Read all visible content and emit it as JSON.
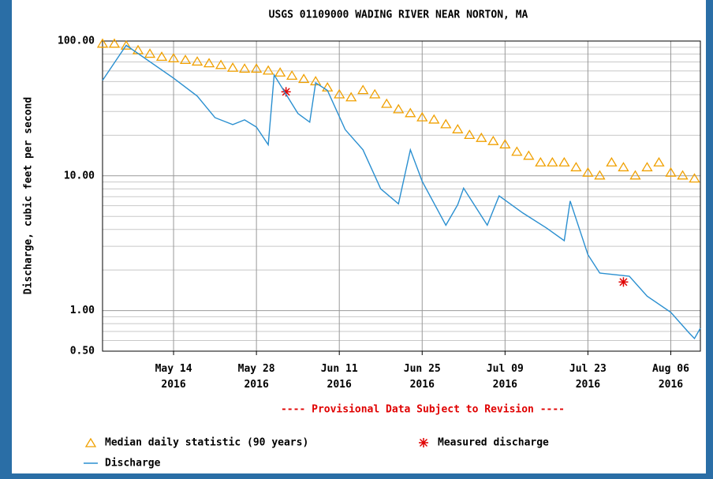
{
  "chart_data": {
    "type": "line",
    "title": "USGS 01109000 WADING RIVER NEAR NORTON, MA",
    "y_label": "Discharge, cubic feet per second",
    "note": "---- Provisional Data Subject to Revision ----",
    "log_scale_y": true,
    "grid": true,
    "minor_grid": true,
    "xlim": [
      "2016-05-02",
      "2016-08-11"
    ],
    "xticks": [
      {
        "value": "2016-05-14",
        "label": "May 14\n2016"
      },
      {
        "value": "2016-05-28",
        "label": "May 28\n2016"
      },
      {
        "value": "2016-06-11",
        "label": "Jun 11\n2016"
      },
      {
        "value": "2016-06-25",
        "label": "Jun 25\n2016"
      },
      {
        "value": "2016-07-09",
        "label": "Jul 09\n2016"
      },
      {
        "value": "2016-07-23",
        "label": "Jul 23\n2016"
      },
      {
        "value": "2016-08-06",
        "label": "Aug 06\n2016"
      }
    ],
    "ylim": [
      0.5,
      100
    ],
    "yticks": [
      {
        "value": 0.5,
        "label": "0.50"
      },
      {
        "value": 1,
        "label": "1.00"
      },
      {
        "value": 10,
        "label": "10.00"
      },
      {
        "value": 100,
        "label": "100.00"
      }
    ],
    "series": [
      {
        "name": "Median daily statistic (90 years)",
        "color": "#f0a000",
        "style": "triangle",
        "x": [
          "2016-05-02",
          "2016-05-04",
          "2016-05-06",
          "2016-05-08",
          "2016-05-10",
          "2016-05-12",
          "2016-05-14",
          "2016-05-16",
          "2016-05-18",
          "2016-05-20",
          "2016-05-22",
          "2016-05-24",
          "2016-05-26",
          "2016-05-28",
          "2016-05-30",
          "2016-06-01",
          "2016-06-03",
          "2016-06-05",
          "2016-06-07",
          "2016-06-09",
          "2016-06-11",
          "2016-06-13",
          "2016-06-15",
          "2016-06-17",
          "2016-06-19",
          "2016-06-21",
          "2016-06-23",
          "2016-06-25",
          "2016-06-27",
          "2016-06-29",
          "2016-07-01",
          "2016-07-03",
          "2016-07-05",
          "2016-07-07",
          "2016-07-09",
          "2016-07-11",
          "2016-07-13",
          "2016-07-15",
          "2016-07-17",
          "2016-07-19",
          "2016-07-21",
          "2016-07-23",
          "2016-07-25",
          "2016-07-27",
          "2016-07-29",
          "2016-07-31",
          "2016-08-02",
          "2016-08-04",
          "2016-08-06",
          "2016-08-08",
          "2016-08-10"
        ],
        "values": [
          95,
          95,
          92,
          85,
          80,
          76,
          74,
          72,
          70,
          68,
          66,
          63,
          62,
          62,
          60,
          58,
          55,
          52,
          50,
          45,
          40,
          38,
          43,
          40,
          34,
          31,
          29,
          27,
          26,
          24,
          22,
          20,
          19,
          18,
          17,
          15,
          14,
          12.5,
          12.5,
          12.5,
          11.5,
          10.5,
          10,
          12.5,
          11.5,
          10,
          11.5,
          12.5,
          10.5,
          10,
          9.5
        ]
      },
      {
        "name": "Measured discharge",
        "color": "#e00000",
        "style": "asterisk",
        "x": [
          "2016-06-02",
          "2016-07-29"
        ],
        "values": [
          42,
          1.63
        ]
      },
      {
        "name": "Discharge",
        "color": "#2a8fd0",
        "style": "line",
        "x": [
          "2016-05-02",
          "2016-05-06",
          "2016-05-14",
          "2016-05-18",
          "2016-05-21",
          "2016-05-24",
          "2016-05-26",
          "2016-05-28",
          "2016-05-30",
          "2016-05-31",
          "2016-06-04",
          "2016-06-06",
          "2016-06-07",
          "2016-06-09",
          "2016-06-12",
          "2016-06-15",
          "2016-06-18",
          "2016-06-21",
          "2016-06-23",
          "2016-06-25",
          "2016-06-29",
          "2016-07-01",
          "2016-07-02",
          "2016-07-06",
          "2016-07-08",
          "2016-07-12",
          "2016-07-16",
          "2016-07-19",
          "2016-07-20",
          "2016-07-23",
          "2016-07-25",
          "2016-07-30",
          "2016-08-02",
          "2016-08-06",
          "2016-08-09",
          "2016-08-10",
          "2016-08-11"
        ],
        "values": [
          51,
          93,
          53,
          39,
          27,
          24,
          26,
          23,
          17,
          56,
          29,
          25,
          49,
          43,
          22,
          15.6,
          8,
          6.2,
          15.6,
          9.1,
          4.3,
          6.1,
          8.1,
          4.3,
          7.1,
          5.3,
          4.1,
          3.3,
          6.5,
          2.6,
          1.9,
          1.8,
          1.28,
          0.97,
          0.69,
          0.62,
          0.74
        ]
      }
    ]
  }
}
